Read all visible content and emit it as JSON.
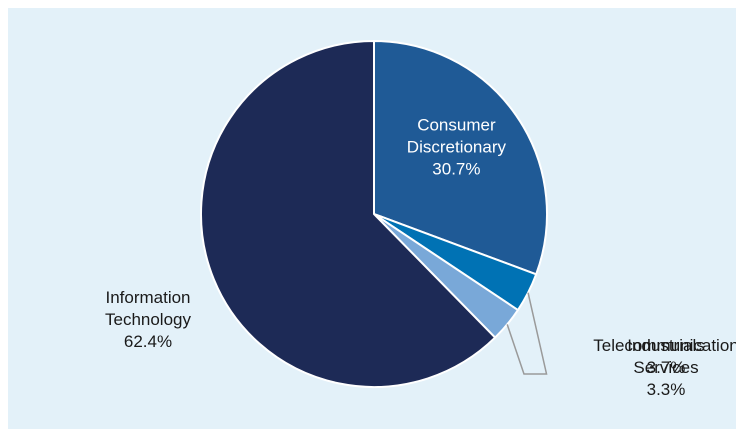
{
  "chart_data": {
    "type": "pie",
    "title": "",
    "start_angle_deg": 0,
    "direction": "clockwise",
    "slices": [
      {
        "name_lines": [
          "Consumer",
          "Discretionary"
        ],
        "value": 30.7,
        "value_label": "30.7%",
        "color": "#1f5a96",
        "label_color": "#ffffff",
        "label_placement": "inside"
      },
      {
        "name_lines": [
          "Industrials"
        ],
        "value": 3.7,
        "value_label": "3.7%",
        "color": "#0072b4",
        "label_color": "#1a1a1a",
        "label_placement": "outside-right"
      },
      {
        "name_lines": [
          "Telecommunication",
          "Services"
        ],
        "value": 3.3,
        "value_label": "3.3%",
        "color": "#79a8d8",
        "label_color": "#1a1a1a",
        "label_placement": "outside-right"
      },
      {
        "name_lines": [
          "Information",
          "Technology"
        ],
        "value": 62.4,
        "value_label": "62.4%",
        "color": "#1d2a56",
        "label_color": "#1a1a1a",
        "label_placement": "outside-left"
      }
    ]
  },
  "colors": {
    "panel_background": "#e3f1f9",
    "leader_line": "#9a9a9a"
  }
}
